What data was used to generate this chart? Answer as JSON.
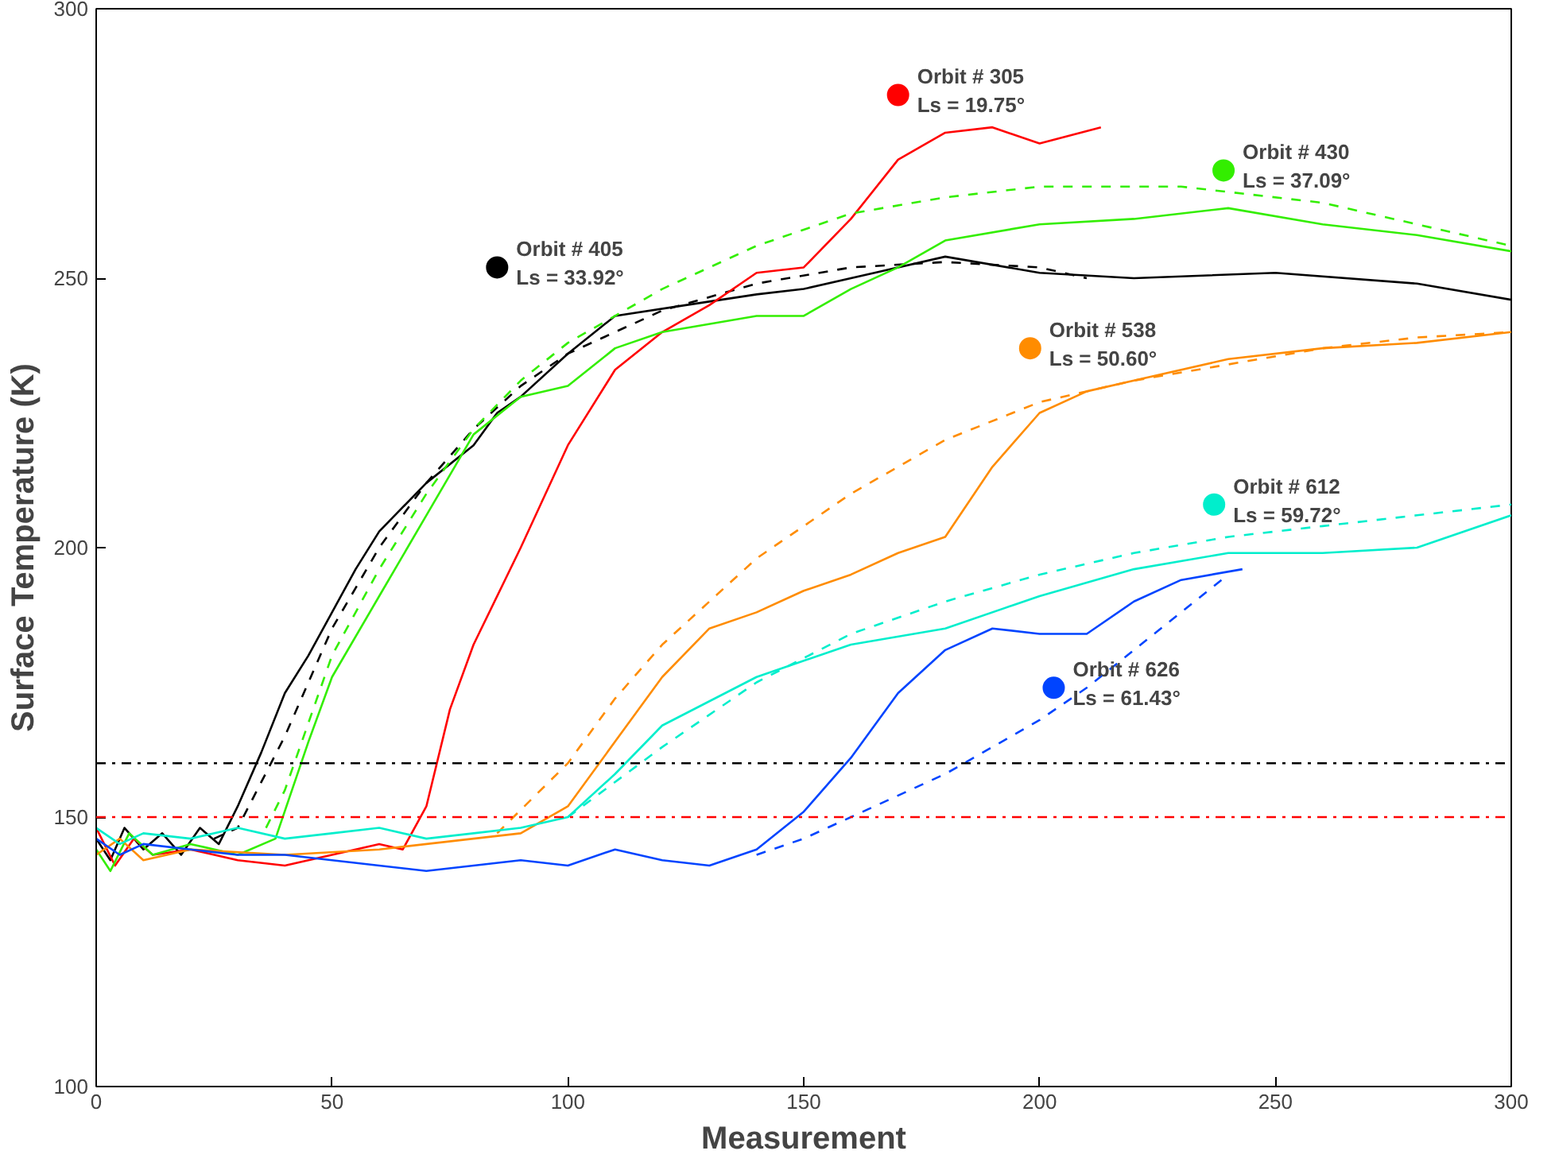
{
  "chart_data": {
    "type": "line",
    "xlabel": "Measurement",
    "ylabel": "Surface Temperature (K)",
    "xlim": [
      0,
      300
    ],
    "ylim": [
      100,
      300
    ],
    "xticks": [
      0,
      50,
      100,
      150,
      200,
      250,
      300
    ],
    "yticks": [
      100,
      150,
      200,
      250,
      300
    ],
    "grid": false,
    "legend": false,
    "marker": "none",
    "series": [
      {
        "color": "#000000",
        "line_style": "solid",
        "x": [
          0,
          3,
          6,
          10,
          14,
          18,
          22,
          26,
          30,
          35,
          40,
          45,
          50,
          55,
          60,
          70,
          80,
          85,
          90,
          100,
          110,
          125,
          140,
          150,
          165,
          180,
          200,
          220,
          250,
          280,
          300
        ],
        "values": [
          146,
          142,
          148,
          144,
          147,
          143,
          148,
          145,
          152,
          162,
          173,
          180,
          188,
          196,
          203,
          212,
          219,
          225,
          228,
          236,
          243,
          245,
          247,
          248,
          251,
          254,
          251,
          250,
          251,
          249,
          246
        ]
      },
      {
        "color": "#000000",
        "line_style": "dashed",
        "x": [
          25,
          30,
          40,
          50,
          60,
          70,
          80,
          90,
          100,
          120,
          140,
          160,
          180,
          200,
          210
        ],
        "values": [
          146,
          148,
          165,
          185,
          200,
          212,
          222,
          230,
          236,
          244,
          249,
          252,
          253,
          252,
          250
        ]
      },
      {
        "type": "scatter",
        "color": "#000000",
        "marker": "circle",
        "name": "Orbit # 405\nLs = 33.92°",
        "x": [
          85
        ],
        "values": [
          252
        ]
      },
      {
        "color": "#ff0000",
        "line_style": "solid",
        "x": [
          0,
          4,
          8,
          12,
          20,
          30,
          40,
          50,
          60,
          65,
          70,
          75,
          80,
          90,
          100,
          110,
          120,
          130,
          140,
          150,
          160,
          170,
          180,
          190,
          200,
          213
        ],
        "values": [
          148,
          141,
          146,
          143,
          144,
          142,
          141,
          143,
          145,
          144,
          152,
          170,
          182,
          200,
          219,
          233,
          240,
          245,
          251,
          252,
          261,
          272,
          277,
          278,
          275,
          278
        ]
      },
      {
        "type": "scatter",
        "color": "#ff0000",
        "marker": "circle",
        "name": "Orbit # 305\nLs = 19.75°",
        "x": [
          170
        ],
        "values": [
          284
        ]
      },
      {
        "color": "#33ee00",
        "line_style": "solid",
        "x": [
          0,
          3,
          7,
          12,
          20,
          30,
          38,
          45,
          50,
          60,
          70,
          80,
          90,
          100,
          110,
          120,
          140,
          150,
          160,
          170,
          180,
          200,
          220,
          240,
          260,
          280,
          300
        ],
        "values": [
          144,
          140,
          147,
          143,
          145,
          143,
          146,
          164,
          176,
          191,
          206,
          221,
          228,
          230,
          237,
          240,
          243,
          243,
          248,
          252,
          257,
          260,
          261,
          263,
          260,
          258,
          255
        ]
      },
      {
        "color": "#33ee00",
        "line_style": "dashed",
        "x": [
          36,
          40,
          50,
          60,
          70,
          80,
          90,
          100,
          120,
          140,
          160,
          180,
          200,
          230,
          260,
          280,
          300
        ],
        "values": [
          148,
          155,
          180,
          196,
          210,
          222,
          231,
          238,
          248,
          256,
          262,
          265,
          267,
          267,
          264,
          260,
          256
        ]
      },
      {
        "type": "scatter",
        "color": "#33ee00",
        "marker": "circle",
        "name": "Orbit # 430\nLs = 37.09°",
        "x": [
          239
        ],
        "values": [
          270
        ]
      },
      {
        "color": "#ff8c00",
        "line_style": "solid",
        "x": [
          0,
          5,
          10,
          20,
          40,
          60,
          80,
          90,
          100,
          110,
          120,
          130,
          140,
          150,
          160,
          170,
          180,
          190,
          200,
          210,
          220,
          240,
          260,
          280,
          300
        ],
        "values": [
          143,
          146,
          142,
          144,
          143,
          144,
          146,
          147,
          152,
          164,
          176,
          185,
          188,
          192,
          195,
          199,
          202,
          215,
          225,
          229,
          231,
          235,
          237,
          238,
          240
        ]
      },
      {
        "color": "#ff8c00",
        "line_style": "dashed",
        "x": [
          85,
          100,
          110,
          120,
          130,
          140,
          160,
          180,
          200,
          220,
          240,
          260,
          280,
          300
        ],
        "values": [
          147,
          160,
          172,
          182,
          190,
          198,
          210,
          220,
          227,
          231,
          234,
          237,
          239,
          240
        ]
      },
      {
        "type": "scatter",
        "color": "#ff8c00",
        "marker": "circle",
        "name": "Orbit # 538\nLs = 50.60°",
        "x": [
          198
        ],
        "values": [
          237
        ]
      },
      {
        "color": "#00eecc",
        "line_style": "solid",
        "x": [
          0,
          5,
          10,
          20,
          30,
          40,
          50,
          60,
          70,
          80,
          90,
          100,
          110,
          120,
          140,
          160,
          180,
          200,
          220,
          240,
          260,
          280,
          300
        ],
        "values": [
          148,
          145,
          147,
          146,
          148,
          146,
          147,
          148,
          146,
          147,
          148,
          150,
          158,
          167,
          176,
          182,
          185,
          191,
          196,
          199,
          199,
          200,
          206
        ]
      },
      {
        "color": "#00eecc",
        "line_style": "dashed",
        "x": [
          100,
          120,
          140,
          160,
          180,
          200,
          220,
          240,
          260,
          280,
          300
        ],
        "values": [
          150,
          163,
          175,
          184,
          190,
          195,
          199,
          202,
          204,
          206,
          208
        ]
      },
      {
        "type": "scatter",
        "color": "#00eecc",
        "marker": "circle",
        "name": "Orbit # 612\nLs = 59.72°",
        "x": [
          237
        ],
        "values": [
          208
        ]
      },
      {
        "color": "#0044ff",
        "line_style": "solid",
        "x": [
          0,
          5,
          10,
          20,
          30,
          40,
          50,
          60,
          70,
          80,
          90,
          100,
          110,
          120,
          130,
          140,
          150,
          160,
          170,
          180,
          190,
          200,
          210,
          220,
          230,
          243
        ],
        "values": [
          146,
          143,
          145,
          144,
          143,
          143,
          142,
          141,
          140,
          141,
          142,
          141,
          144,
          142,
          141,
          144,
          151,
          161,
          173,
          181,
          185,
          184,
          184,
          190,
          194,
          196
        ]
      },
      {
        "color": "#0044ff",
        "line_style": "dashed",
        "x": [
          140,
          150,
          160,
          170,
          180,
          190,
          200,
          210,
          220,
          230,
          240
        ],
        "values": [
          143,
          146,
          150,
          154,
          158,
          163,
          168,
          174,
          181,
          188,
          195
        ]
      },
      {
        "type": "scatter",
        "color": "#0044ff",
        "marker": "circle",
        "name": "Orbit # 626\nLs = 61.43°",
        "x": [
          203
        ],
        "values": [
          174
        ]
      }
    ],
    "ref_lines": [
      {
        "axis": "y",
        "value": 160,
        "color": "#000000",
        "line_style": "dashdot"
      },
      {
        "axis": "y",
        "value": 150,
        "color": "#ff0000",
        "line_style": "dashdot"
      }
    ]
  }
}
